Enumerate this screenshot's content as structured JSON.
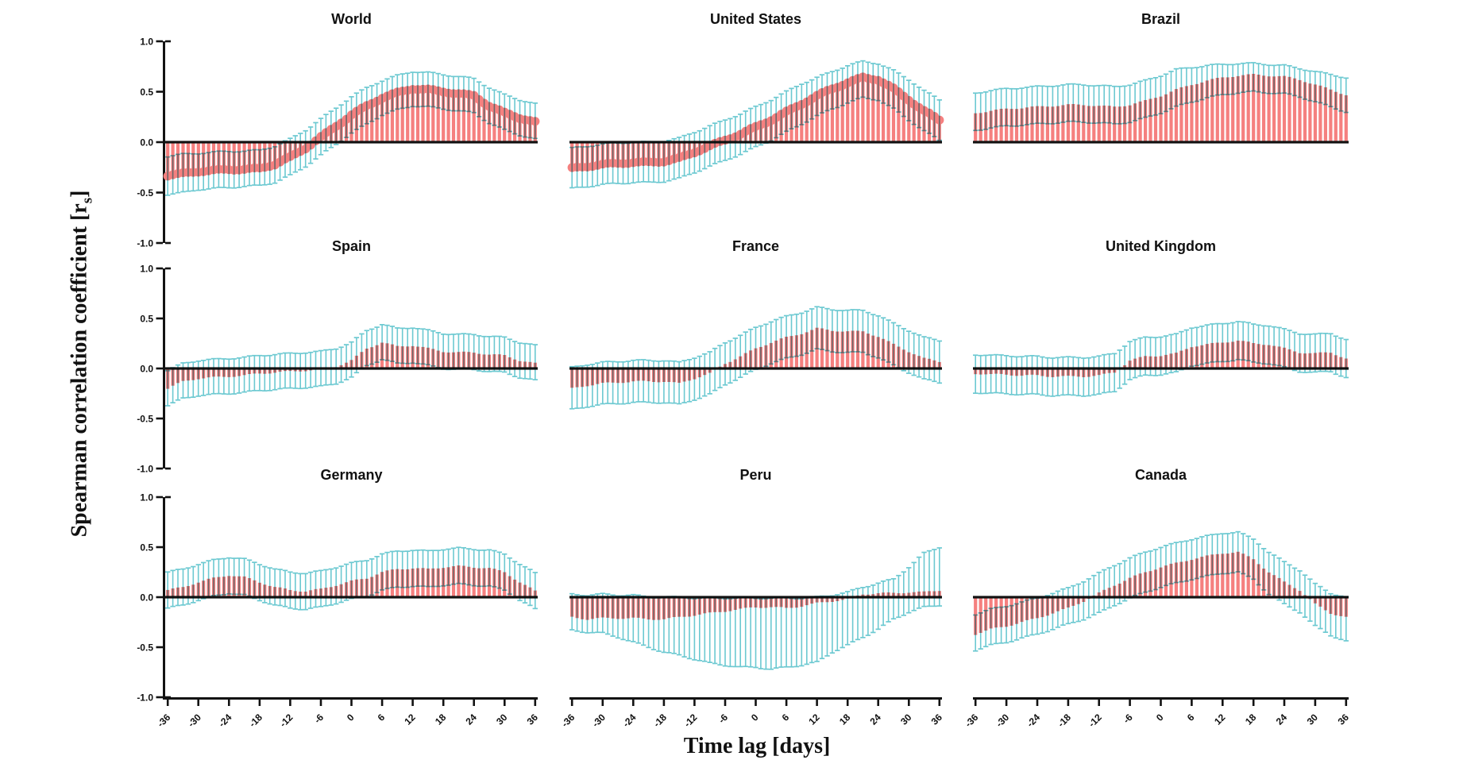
{
  "figure": {
    "y_axis_title": {
      "main": "Spearman correlation coefficient [r",
      "sub": "s",
      "close": "]"
    },
    "x_axis_title": "Time lag [days]",
    "y_ticks": {
      "labels": [
        "1.0",
        "0.5",
        "0.0",
        "-0.5",
        "-1.0"
      ],
      "values": [
        1.0,
        0.5,
        0.0,
        -0.5,
        -1.0
      ]
    },
    "x_ticks": [
      -36,
      -30,
      -24,
      -18,
      -12,
      -6,
      0,
      6,
      12,
      18,
      24,
      30,
      36
    ],
    "colors": {
      "bar": "#F5807F",
      "error": "#6CC9D1",
      "axis": "#121212",
      "text": "#111111",
      "background": "#ffffff"
    },
    "grid": {
      "rows": 3,
      "cols": 3
    }
  },
  "chart_data": [
    {
      "type": "bar",
      "title": "World",
      "markers": true,
      "ylim": [
        -1,
        1
      ],
      "xlim": [
        -36,
        36
      ],
      "x": [
        -36,
        -33,
        -30,
        -27,
        -24,
        -21,
        -18,
        -15,
        -12,
        -9,
        -6,
        -3,
        0,
        3,
        6,
        9,
        12,
        15,
        18,
        21,
        24,
        27,
        30,
        33,
        36
      ],
      "values": [
        -0.33,
        -0.31,
        -0.29,
        -0.28,
        -0.27,
        -0.27,
        -0.26,
        -0.22,
        -0.15,
        -0.06,
        0.05,
        0.16,
        0.27,
        0.36,
        0.44,
        0.49,
        0.53,
        0.52,
        0.5,
        0.48,
        0.46,
        0.36,
        0.29,
        0.24,
        0.2
      ],
      "err_lo": [
        -0.52,
        -0.5,
        -0.47,
        -0.46,
        -0.45,
        -0.44,
        -0.43,
        -0.4,
        -0.33,
        -0.24,
        -0.13,
        -0.02,
        0.09,
        0.18,
        0.27,
        0.32,
        0.36,
        0.35,
        0.33,
        0.31,
        0.29,
        0.19,
        0.12,
        0.07,
        0.03
      ],
      "err_hi": [
        -0.14,
        -0.12,
        -0.11,
        -0.1,
        -0.09,
        -0.09,
        -0.08,
        -0.04,
        0.03,
        0.12,
        0.23,
        0.34,
        0.45,
        0.54,
        0.61,
        0.66,
        0.7,
        0.69,
        0.67,
        0.65,
        0.63,
        0.54,
        0.47,
        0.42,
        0.38
      ]
    },
    {
      "type": "bar",
      "title": "United States",
      "markers": true,
      "ylim": [
        -1,
        1
      ],
      "xlim": [
        -36,
        36
      ],
      "x": [
        -36,
        -33,
        -30,
        -27,
        -24,
        -21,
        -18,
        -15,
        -12,
        -9,
        -6,
        -3,
        0,
        3,
        6,
        9,
        12,
        15,
        18,
        21,
        24,
        27,
        30,
        33,
        36
      ],
      "values": [
        -0.26,
        -0.24,
        -0.22,
        -0.21,
        -0.2,
        -0.2,
        -0.19,
        -0.16,
        -0.1,
        -0.04,
        0.02,
        0.08,
        0.15,
        0.22,
        0.3,
        0.38,
        0.46,
        0.53,
        0.59,
        0.64,
        0.62,
        0.53,
        0.42,
        0.31,
        0.22
      ],
      "err_lo": [
        -0.46,
        -0.44,
        -0.42,
        -0.41,
        -0.4,
        -0.4,
        -0.39,
        -0.36,
        -0.3,
        -0.24,
        -0.18,
        -0.12,
        -0.05,
        0.02,
        0.1,
        0.18,
        0.26,
        0.33,
        0.39,
        0.44,
        0.42,
        0.33,
        0.22,
        0.11,
        0.02
      ],
      "err_hi": [
        -0.06,
        -0.04,
        -0.02,
        -0.01,
        0.0,
        0.0,
        0.01,
        0.04,
        0.1,
        0.16,
        0.22,
        0.28,
        0.35,
        0.42,
        0.5,
        0.58,
        0.64,
        0.7,
        0.76,
        0.8,
        0.78,
        0.71,
        0.62,
        0.51,
        0.42
      ]
    },
    {
      "type": "bar",
      "title": "Brazil",
      "markers": false,
      "ylim": [
        -1,
        1
      ],
      "xlim": [
        -36,
        36
      ],
      "x": [
        -36,
        -33,
        -30,
        -27,
        -24,
        -21,
        -18,
        -15,
        -12,
        -9,
        -6,
        -3,
        0,
        3,
        6,
        9,
        12,
        15,
        18,
        21,
        24,
        27,
        30,
        33,
        36
      ],
      "values": [
        0.29,
        0.31,
        0.33,
        0.34,
        0.35,
        0.36,
        0.37,
        0.37,
        0.36,
        0.35,
        0.37,
        0.41,
        0.46,
        0.52,
        0.57,
        0.61,
        0.64,
        0.66,
        0.67,
        0.66,
        0.65,
        0.62,
        0.57,
        0.52,
        0.47
      ],
      "err_lo": [
        0.12,
        0.14,
        0.16,
        0.17,
        0.18,
        0.19,
        0.2,
        0.2,
        0.19,
        0.18,
        0.2,
        0.24,
        0.29,
        0.35,
        0.4,
        0.44,
        0.47,
        0.49,
        0.5,
        0.49,
        0.48,
        0.45,
        0.4,
        0.35,
        0.3
      ],
      "err_hi": [
        0.49,
        0.51,
        0.53,
        0.54,
        0.55,
        0.56,
        0.57,
        0.57,
        0.56,
        0.55,
        0.57,
        0.61,
        0.66,
        0.72,
        0.74,
        0.76,
        0.77,
        0.78,
        0.78,
        0.77,
        0.76,
        0.73,
        0.7,
        0.67,
        0.64
      ]
    },
    {
      "type": "bar",
      "title": "Spain",
      "markers": false,
      "ylim": [
        -1,
        1
      ],
      "xlim": [
        -36,
        36
      ],
      "x": [
        -36,
        -33,
        -30,
        -27,
        -24,
        -21,
        -18,
        -15,
        -12,
        -9,
        -6,
        -3,
        0,
        3,
        6,
        9,
        12,
        15,
        18,
        21,
        24,
        27,
        30,
        33,
        36
      ],
      "values": [
        -0.2,
        -0.13,
        -0.1,
        -0.09,
        -0.08,
        -0.07,
        -0.05,
        -0.04,
        -0.03,
        -0.02,
        -0.01,
        0.02,
        0.08,
        0.2,
        0.26,
        0.22,
        0.23,
        0.2,
        0.17,
        0.16,
        0.16,
        0.14,
        0.13,
        0.08,
        0.05
      ],
      "err_lo": [
        -0.37,
        -0.3,
        -0.27,
        -0.26,
        -0.25,
        -0.24,
        -0.22,
        -0.21,
        -0.2,
        -0.19,
        -0.18,
        -0.15,
        -0.09,
        0.03,
        0.09,
        0.05,
        0.06,
        0.03,
        0.0,
        -0.01,
        -0.01,
        -0.03,
        -0.04,
        -0.09,
        -0.12
      ],
      "err_hi": [
        -0.02,
        0.05,
        0.08,
        0.09,
        0.1,
        0.11,
        0.13,
        0.14,
        0.15,
        0.16,
        0.17,
        0.2,
        0.26,
        0.38,
        0.44,
        0.4,
        0.41,
        0.38,
        0.35,
        0.34,
        0.34,
        0.32,
        0.31,
        0.26,
        0.23
      ]
    },
    {
      "type": "bar",
      "title": "France",
      "markers": false,
      "ylim": [
        -1,
        1
      ],
      "xlim": [
        -36,
        36
      ],
      "x": [
        -36,
        -33,
        -30,
        -27,
        -24,
        -21,
        -18,
        -15,
        -12,
        -9,
        -6,
        -3,
        0,
        3,
        6,
        9,
        12,
        15,
        18,
        21,
        24,
        27,
        30,
        33,
        36
      ],
      "values": [
        -0.2,
        -0.17,
        -0.15,
        -0.14,
        -0.13,
        -0.13,
        -0.13,
        -0.15,
        -0.1,
        -0.05,
        0.05,
        0.12,
        0.2,
        0.26,
        0.31,
        0.35,
        0.4,
        0.38,
        0.37,
        0.37,
        0.32,
        0.24,
        0.17,
        0.1,
        0.07
      ],
      "err_lo": [
        -0.41,
        -0.38,
        -0.36,
        -0.35,
        -0.34,
        -0.34,
        -0.34,
        -0.36,
        -0.31,
        -0.26,
        -0.16,
        -0.09,
        -0.01,
        0.05,
        0.1,
        0.14,
        0.19,
        0.17,
        0.16,
        0.16,
        0.11,
        0.03,
        -0.04,
        -0.11,
        -0.14
      ],
      "err_hi": [
        0.01,
        0.04,
        0.06,
        0.07,
        0.08,
        0.08,
        0.08,
        0.06,
        0.11,
        0.16,
        0.26,
        0.33,
        0.41,
        0.47,
        0.52,
        0.56,
        0.61,
        0.59,
        0.58,
        0.58,
        0.53,
        0.45,
        0.38,
        0.31,
        0.28
      ]
    },
    {
      "type": "bar",
      "title": "United Kingdom",
      "markers": false,
      "ylim": [
        -1,
        1
      ],
      "xlim": [
        -36,
        36
      ],
      "x": [
        -36,
        -33,
        -30,
        -27,
        -24,
        -21,
        -18,
        -15,
        -12,
        -9,
        -6,
        -3,
        0,
        3,
        6,
        9,
        12,
        15,
        18,
        21,
        24,
        27,
        30,
        33,
        36
      ],
      "values": [
        -0.05,
        -0.06,
        -0.06,
        -0.07,
        -0.07,
        -0.08,
        -0.08,
        -0.08,
        -0.07,
        -0.04,
        0.08,
        0.12,
        0.13,
        0.15,
        0.22,
        0.24,
        0.26,
        0.28,
        0.25,
        0.24,
        0.2,
        0.16,
        0.15,
        0.16,
        0.1
      ],
      "err_lo": [
        -0.24,
        -0.25,
        -0.25,
        -0.26,
        -0.26,
        -0.27,
        -0.27,
        -0.27,
        -0.26,
        -0.23,
        -0.11,
        -0.07,
        -0.06,
        -0.04,
        0.03,
        0.05,
        0.07,
        0.09,
        0.06,
        0.05,
        0.01,
        -0.03,
        -0.04,
        -0.03,
        -0.09
      ],
      "err_hi": [
        0.14,
        0.13,
        0.13,
        0.12,
        0.12,
        0.11,
        0.11,
        0.11,
        0.12,
        0.15,
        0.27,
        0.31,
        0.32,
        0.34,
        0.41,
        0.43,
        0.45,
        0.47,
        0.44,
        0.43,
        0.39,
        0.35,
        0.34,
        0.35,
        0.29
      ]
    },
    {
      "type": "bar",
      "title": "Germany",
      "markers": false,
      "ylim": [
        -1,
        1
      ],
      "xlim": [
        -36,
        36
      ],
      "x": [
        -36,
        -33,
        -30,
        -27,
        -24,
        -21,
        -18,
        -15,
        -12,
        -9,
        -6,
        -3,
        0,
        3,
        6,
        9,
        12,
        15,
        18,
        21,
        24,
        27,
        30,
        33,
        36
      ],
      "values": [
        0.07,
        0.1,
        0.15,
        0.19,
        0.22,
        0.2,
        0.15,
        0.1,
        0.07,
        0.06,
        0.08,
        0.12,
        0.16,
        0.19,
        0.25,
        0.28,
        0.29,
        0.28,
        0.3,
        0.31,
        0.3,
        0.29,
        0.25,
        0.15,
        0.06
      ],
      "err_lo": [
        -0.11,
        -0.08,
        -0.03,
        0.01,
        0.04,
        0.02,
        -0.03,
        -0.08,
        -0.11,
        -0.12,
        -0.1,
        -0.06,
        -0.02,
        0.01,
        0.07,
        0.1,
        0.11,
        0.1,
        0.12,
        0.13,
        0.12,
        0.11,
        0.07,
        -0.03,
        -0.12
      ],
      "err_hi": [
        0.25,
        0.28,
        0.33,
        0.37,
        0.4,
        0.38,
        0.33,
        0.28,
        0.25,
        0.24,
        0.26,
        0.3,
        0.34,
        0.37,
        0.43,
        0.46,
        0.47,
        0.46,
        0.48,
        0.49,
        0.48,
        0.47,
        0.43,
        0.33,
        0.24
      ]
    },
    {
      "type": "bar",
      "title": "Peru",
      "markers": false,
      "ylim": [
        -1,
        1
      ],
      "xlim": [
        -36,
        36
      ],
      "x": [
        -36,
        -33,
        -30,
        -27,
        -24,
        -21,
        -18,
        -15,
        -12,
        -9,
        -6,
        -3,
        0,
        3,
        6,
        9,
        12,
        15,
        18,
        21,
        24,
        27,
        30,
        33,
        36
      ],
      "values": [
        -0.2,
        -0.22,
        -0.21,
        -0.21,
        -0.21,
        -0.22,
        -0.22,
        -0.2,
        -0.18,
        -0.16,
        -0.14,
        -0.12,
        -0.1,
        -0.1,
        -0.11,
        -0.09,
        -0.06,
        -0.04,
        -0.02,
        0.03,
        0.04,
        0.04,
        0.05,
        0.05,
        0.07
      ],
      "err_lo": [
        -0.33,
        -0.35,
        -0.36,
        -0.4,
        -0.45,
        -0.5,
        -0.55,
        -0.58,
        -0.62,
        -0.66,
        -0.68,
        -0.7,
        -0.7,
        -0.72,
        -0.7,
        -0.68,
        -0.65,
        -0.55,
        -0.48,
        -0.4,
        -0.32,
        -0.22,
        -0.15,
        -0.1,
        -0.08
      ],
      "err_hi": [
        0.03,
        0.02,
        0.03,
        0.02,
        0.02,
        0.0,
        0.0,
        0.0,
        -0.01,
        -0.01,
        -0.01,
        -0.01,
        -0.01,
        -0.01,
        -0.01,
        -0.01,
        0.0,
        0.02,
        0.05,
        0.1,
        0.14,
        0.18,
        0.3,
        0.44,
        0.5
      ]
    },
    {
      "type": "bar",
      "title": "Canada",
      "markers": false,
      "ylim": [
        -1,
        1
      ],
      "xlim": [
        -36,
        36
      ],
      "x": [
        -36,
        -33,
        -30,
        -27,
        -24,
        -21,
        -18,
        -15,
        -12,
        -9,
        -6,
        -3,
        0,
        3,
        6,
        9,
        12,
        15,
        18,
        21,
        24,
        27,
        30,
        33,
        36
      ],
      "values": [
        -0.37,
        -0.32,
        -0.29,
        -0.25,
        -0.21,
        -0.16,
        -0.11,
        -0.04,
        0.04,
        0.12,
        0.19,
        0.25,
        0.3,
        0.34,
        0.38,
        0.41,
        0.44,
        0.45,
        0.38,
        0.25,
        0.15,
        0.07,
        -0.07,
        -0.16,
        -0.2
      ],
      "err_lo": [
        -0.53,
        -0.48,
        -0.45,
        -0.41,
        -0.37,
        -0.32,
        -0.27,
        -0.22,
        -0.16,
        -0.08,
        -0.01,
        0.05,
        0.1,
        0.14,
        0.18,
        0.21,
        0.24,
        0.25,
        0.18,
        0.03,
        -0.07,
        -0.15,
        -0.29,
        -0.38,
        -0.44
      ],
      "err_hi": [
        -0.17,
        -0.12,
        -0.09,
        -0.05,
        -0.01,
        0.04,
        0.09,
        0.16,
        0.24,
        0.32,
        0.39,
        0.45,
        0.5,
        0.54,
        0.58,
        0.61,
        0.64,
        0.65,
        0.58,
        0.45,
        0.35,
        0.27,
        0.13,
        0.04,
        0.0
      ]
    }
  ]
}
